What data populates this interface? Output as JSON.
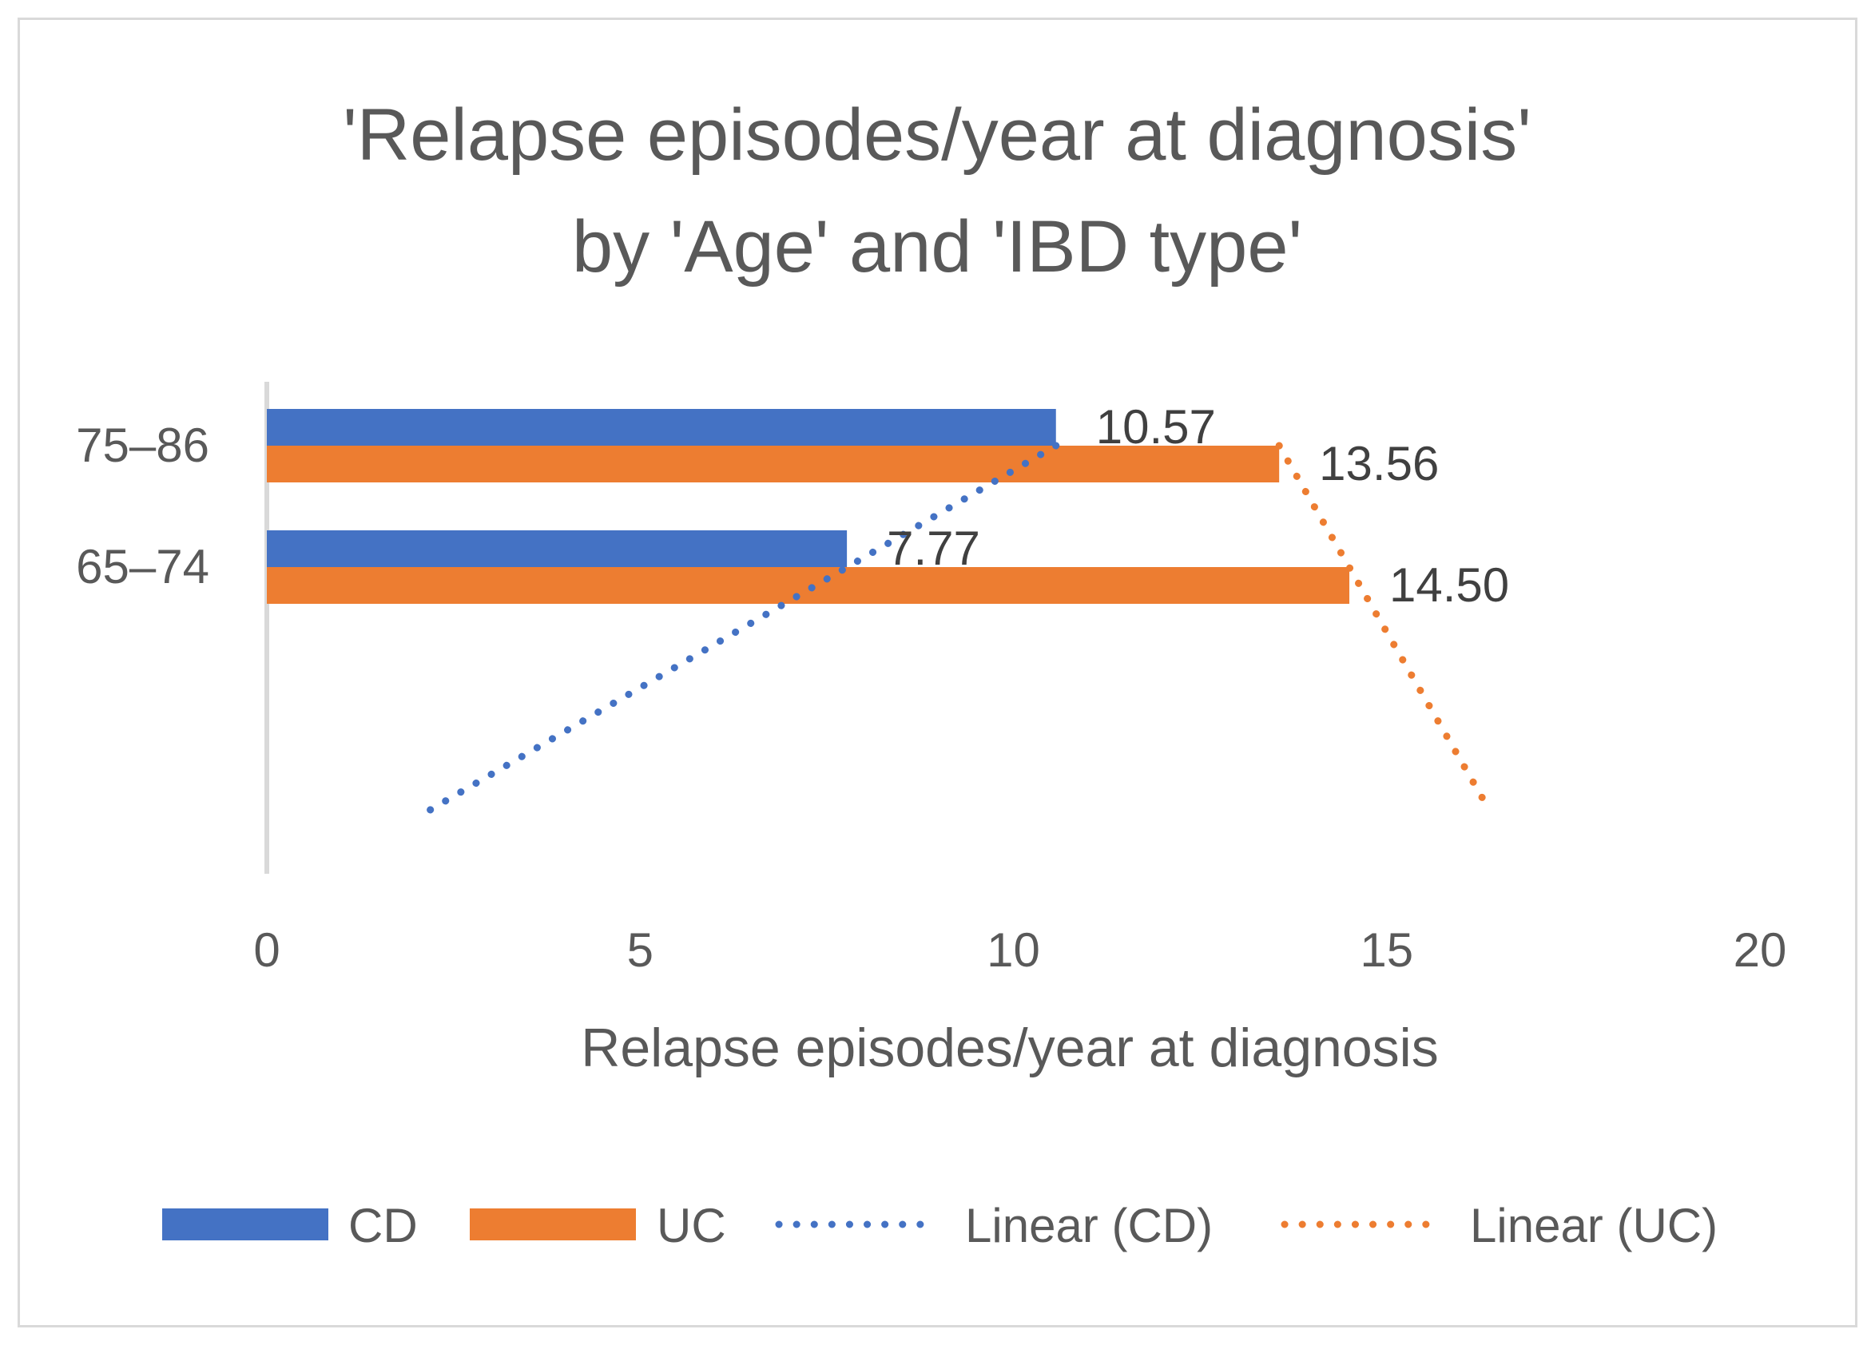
{
  "chart_data": {
    "type": "bar",
    "orientation": "horizontal",
    "title_lines": [
      "'Relapse episodes/year at diagnosis'",
      "by 'Age' and 'IBD type'"
    ],
    "categories": [
      "75–86",
      "65–74"
    ],
    "series": [
      {
        "name": "CD",
        "color": "#4472c4",
        "values": [
          10.57,
          7.77
        ],
        "labels": [
          "10.57",
          "7.77"
        ]
      },
      {
        "name": "UC",
        "color": "#ed7d31",
        "values": [
          13.56,
          14.5
        ],
        "labels": [
          "13.56",
          "14.50"
        ]
      }
    ],
    "trendlines": [
      {
        "name": "Linear (CD)",
        "color": "#4472c4",
        "points": [
          [
            10.57,
            0
          ],
          [
            2.17,
            1
          ]
        ]
      },
      {
        "name": "Linear (UC)",
        "color": "#ed7d31",
        "points": [
          [
            13.56,
            0
          ],
          [
            16.38,
            1
          ]
        ]
      }
    ],
    "xlabel": "Relapse episodes/year at diagnosis",
    "ylabel": "",
    "xlim": [
      0,
      20
    ],
    "xticks": [
      "0",
      "5",
      "10",
      "15",
      "20"
    ],
    "grid": false,
    "legend_position": "bottom"
  }
}
